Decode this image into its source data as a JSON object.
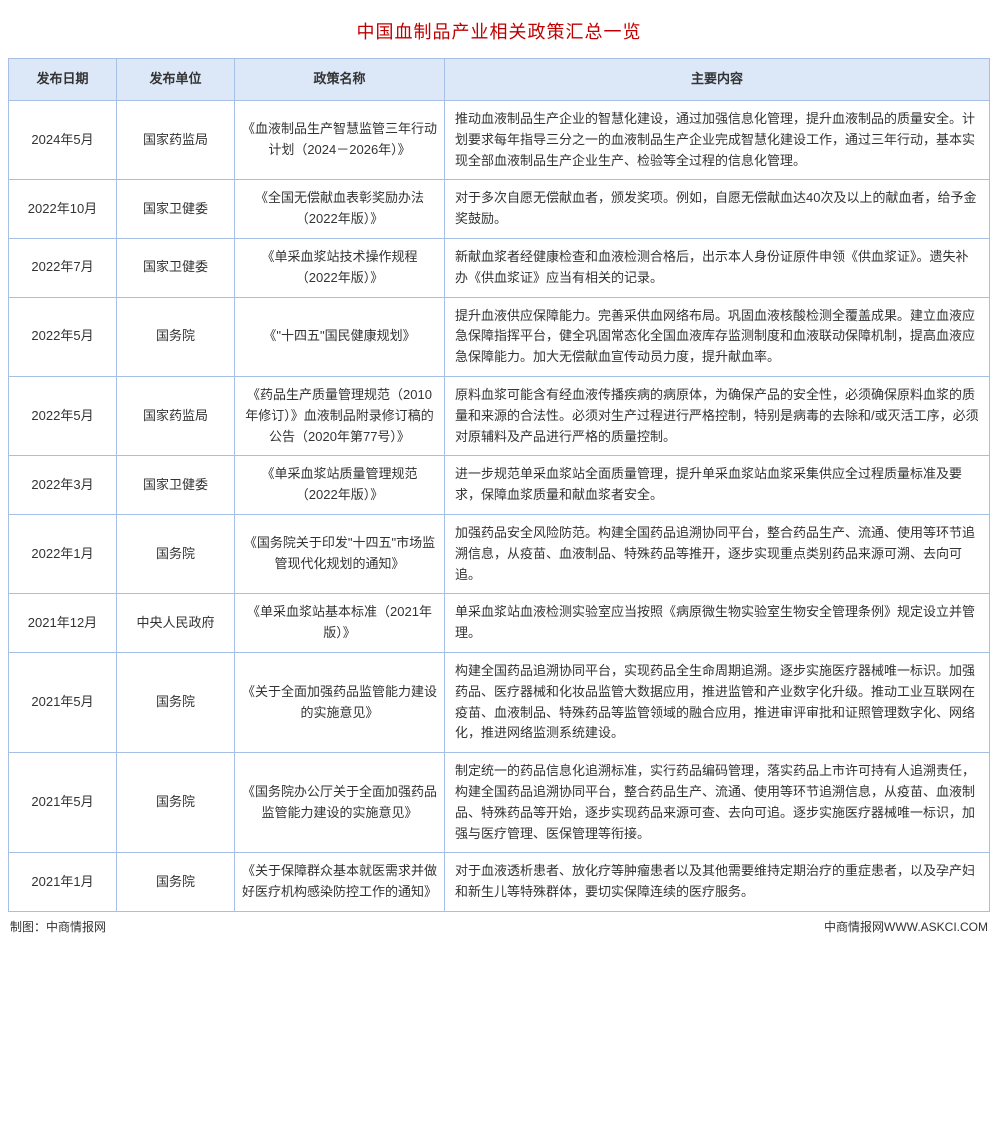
{
  "title": "中国血制品产业相关政策汇总一览",
  "columns": {
    "date": "发布日期",
    "issuer": "发布单位",
    "name": "政策名称",
    "content": "主要内容"
  },
  "rows": [
    {
      "date": "2024年5月",
      "issuer": "国家药监局",
      "name": "《血液制品生产智慧监管三年行动计划（2024－2026年）》",
      "content": "推动血液制品生产企业的智慧化建设，通过加强信息化管理，提升血液制品的质量安全。计划要求每年指导三分之一的血液制品生产企业完成智慧化建设工作，通过三年行动，基本实现全部血液制品生产企业生产、检验等全过程的信息化管理。"
    },
    {
      "date": "2022年10月",
      "issuer": "国家卫健委",
      "name": "《全国无偿献血表彰奖励办法（2022年版）》",
      "content": "对于多次自愿无偿献血者，颁发奖项。例如，自愿无偿献血达40次及以上的献血者，给予金奖鼓励。"
    },
    {
      "date": "2022年7月",
      "issuer": "国家卫健委",
      "name": "《单采血浆站技术操作规程（2022年版）》",
      "content": "新献血浆者经健康检查和血液检测合格后，出示本人身份证原件申领《供血浆证》。遗失补办《供血浆证》应当有相关的记录。"
    },
    {
      "date": "2022年5月",
      "issuer": "国务院",
      "name": "《\"十四五\"国民健康规划》",
      "content": "提升血液供应保障能力。完善采供血网络布局。巩固血液核酸检测全覆盖成果。建立血液应急保障指挥平台，健全巩固常态化全国血液库存监测制度和血液联动保障机制，提高血液应急保障能力。加大无偿献血宣传动员力度，提升献血率。"
    },
    {
      "date": "2022年5月",
      "issuer": "国家药监局",
      "name": "《药品生产质量管理规范（2010年修订）》血液制品附录修订稿的公告（2020年第77号）》",
      "content": "原料血浆可能含有经血液传播疾病的病原体，为确保产品的安全性，必须确保原料血浆的质量和来源的合法性。必须对生产过程进行严格控制，特别是病毒的去除和/或灭活工序，必须对原辅料及产品进行严格的质量控制。"
    },
    {
      "date": "2022年3月",
      "issuer": "国家卫健委",
      "name": "《单采血浆站质量管理规范（2022年版）》",
      "content": "进一步规范单采血浆站全面质量管理，提升单采血浆站血浆采集供应全过程质量标准及要求，保障血浆质量和献血浆者安全。"
    },
    {
      "date": "2022年1月",
      "issuer": "国务院",
      "name": "《国务院关于印发\"十四五\"市场监管现代化规划的通知》",
      "content": "加强药品安全风险防范。构建全国药品追溯协同平台，整合药品生产、流通、使用等环节追溯信息，从疫苗、血液制品、特殊药品等推开，逐步实现重点类别药品来源可溯、去向可追。"
    },
    {
      "date": "2021年12月",
      "issuer": "中央人民政府",
      "name": "《单采血浆站基本标准（2021年版）》",
      "content": "单采血浆站血液检测实验室应当按照《病原微生物实验室生物安全管理条例》规定设立并管理。"
    },
    {
      "date": "2021年5月",
      "issuer": "国务院",
      "name": "《关于全面加强药品监管能力建设的实施意见》",
      "content": "构建全国药品追溯协同平台，实现药品全生命周期追溯。逐步实施医疗器械唯一标识。加强药品、医疗器械和化妆品监管大数据应用，推进监管和产业数字化升级。推动工业互联网在疫苗、血液制品、特殊药品等监管领域的融合应用，推进审评审批和证照管理数字化、网络化，推进网络监测系统建设。"
    },
    {
      "date": "2021年5月",
      "issuer": "国务院",
      "name": "《国务院办公厅关于全面加强药品监管能力建设的实施意见》",
      "content": "制定统一的药品信息化追溯标准，实行药品编码管理，落实药品上市许可持有人追溯责任，构建全国药品追溯协同平台，整合药品生产、流通、使用等环节追溯信息，从疫苗、血液制品、特殊药品等开始，逐步实现药品来源可查、去向可追。逐步实施医疗器械唯一标识，加强与医疗管理、医保管理等衔接。"
    },
    {
      "date": "2021年1月",
      "issuer": "国务院",
      "name": "《关于保障群众基本就医需求并做好医疗机构感染防控工作的通知》",
      "content": "对于血液透析患者、放化疗等肿瘤患者以及其他需要维持定期治疗的重症患者，以及孕产妇和新生儿等特殊群体，要切实保障连续的医疗服务。"
    }
  ],
  "footer": {
    "left": "制图：中商情报网",
    "right": "中商情报网WWW.ASKCI.COM"
  },
  "style": {
    "title_color": "#c00000",
    "header_bg": "#dce8f8",
    "border_color": "#a6bfe4",
    "text_color": "#333333",
    "title_fontsize": 18,
    "cell_fontsize": 13,
    "footer_fontsize": 12
  }
}
